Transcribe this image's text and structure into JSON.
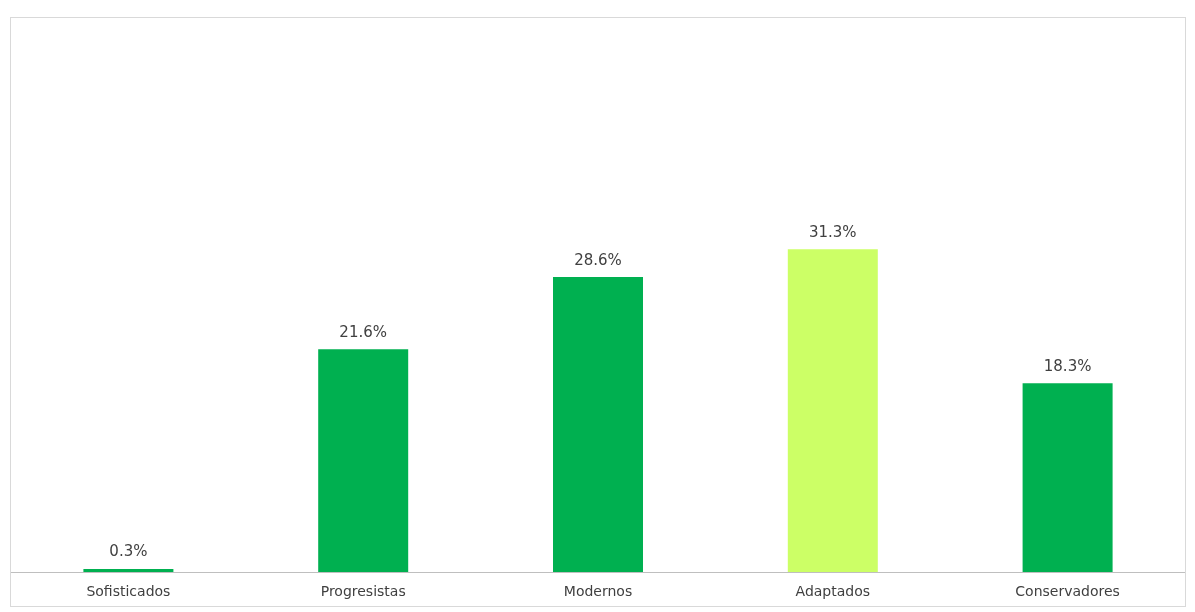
{
  "chart_data": {
    "type": "bar",
    "categories": [
      "Sofisticados",
      "Progresistas",
      "Modernos",
      "Adaptados",
      "Conservadores"
    ],
    "values": [
      0.3,
      21.6,
      28.6,
      31.3,
      18.3
    ],
    "colors": [
      "#00b050",
      "#00b050",
      "#00b050",
      "#ccff66",
      "#00b050"
    ],
    "value_labels": [
      "0.3%",
      "21.6%",
      "28.6%",
      "31.3%",
      "18.3%"
    ],
    "grid": false
  }
}
